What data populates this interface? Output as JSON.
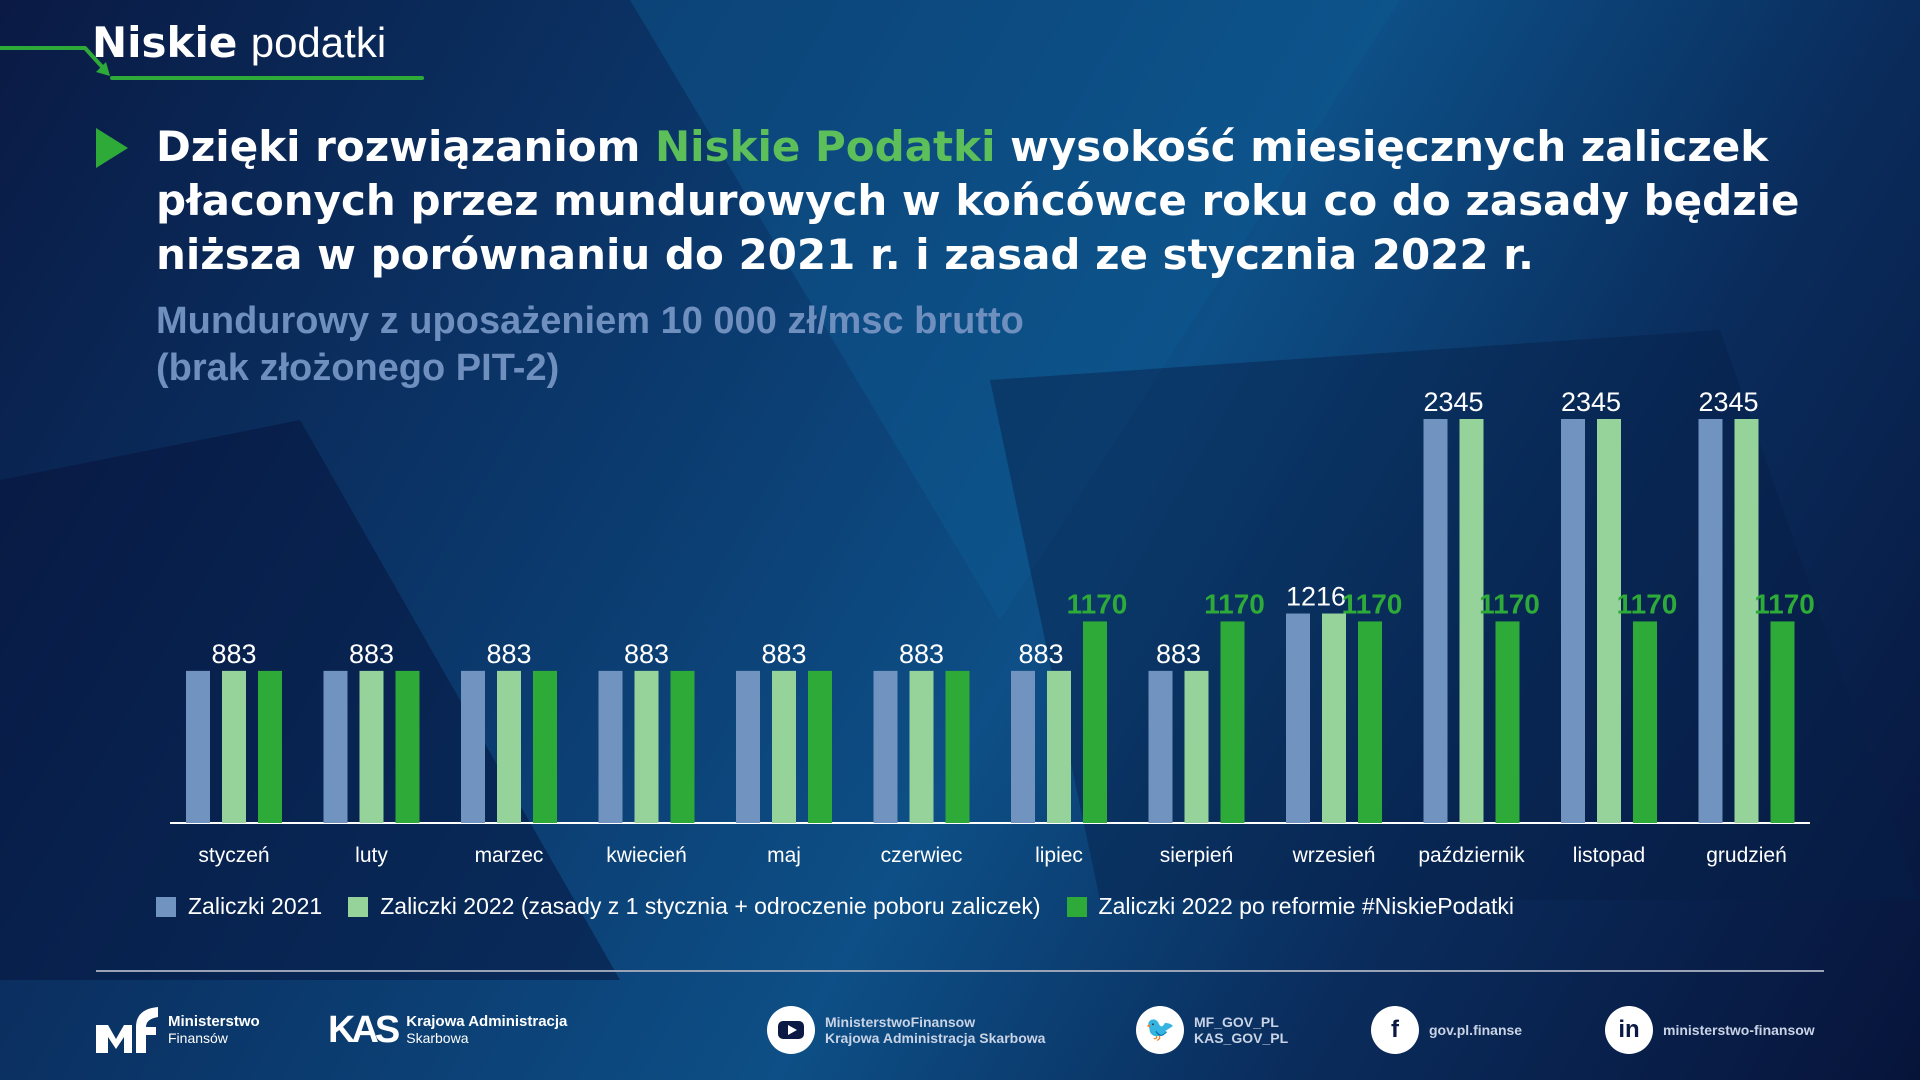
{
  "header": {
    "logo_bold": "Niskie",
    "logo_light": "podatki"
  },
  "title": {
    "part1": "Dzięki rozwiązaniom ",
    "highlight": "Niskie Podatki",
    "part2": " wysokość miesięcznych zaliczek płaconych przez mundurowych w końcówce roku co do zasady będzie niższa w porównaniu do 2021 r. i zasad ze stycznia 2022 r."
  },
  "subtitle": {
    "line1": "Mundurowy z uposażeniem 10 000 zł/msc brutto",
    "line2": "(brak złożonego PIT-2)"
  },
  "chart_data": {
    "type": "bar",
    "categories": [
      "styczeń",
      "luty",
      "marzec",
      "kwiecień",
      "maj",
      "czerwiec",
      "lipiec",
      "sierpień",
      "wrzesień",
      "październik",
      "listopad",
      "grudzień"
    ],
    "series": [
      {
        "name": "Zaliczki 2021",
        "color": "#7193c0",
        "values": [
          883,
          883,
          883,
          883,
          883,
          883,
          883,
          883,
          1216,
          2345,
          2345,
          2345
        ]
      },
      {
        "name": "Zaliczki 2022 (zasady z 1 stycznia + odroczenie poboru zaliczek)",
        "color": "#96d39a",
        "values": [
          883,
          883,
          883,
          883,
          883,
          883,
          883,
          883,
          1216,
          2345,
          2345,
          2345
        ]
      },
      {
        "name": "Zaliczki 2022 po reformie #NiskiePodatki",
        "color": "#2eaa38",
        "values": [
          883,
          883,
          883,
          883,
          883,
          883,
          1170,
          1170,
          1170,
          1170,
          1170,
          1170
        ]
      }
    ],
    "data_labels": [
      {
        "shared": "883"
      },
      {
        "shared": "883"
      },
      {
        "shared": "883"
      },
      {
        "shared": "883"
      },
      {
        "shared": "883"
      },
      {
        "shared": "883"
      },
      {
        "shared": "883",
        "green": "1170"
      },
      {
        "shared": "883",
        "green": "1170"
      },
      {
        "shared": "1216",
        "green": "1170"
      },
      {
        "shared": "2345",
        "green": "1170"
      },
      {
        "shared": "2345",
        "green": "1170"
      },
      {
        "shared": "2345",
        "green": "1170"
      }
    ],
    "legend_position": "bottom-left",
    "grid": false,
    "ylim": [
      0,
      2345
    ]
  },
  "footer": {
    "mf_line1": "Ministerstwo",
    "mf_line2": "Finansów",
    "kas_line1": "Krajowa Administracja",
    "kas_line2": "Skarbowa",
    "youtube_line1": "MinisterstwoFinansow",
    "youtube_line2": "Krajowa Administracja Skarbowa",
    "twitter_line1": "MF_GOV_PL",
    "twitter_line2": "KAS_GOV_PL",
    "facebook": "gov.pl.finanse",
    "linkedin": "ministerstwo-finansow"
  }
}
